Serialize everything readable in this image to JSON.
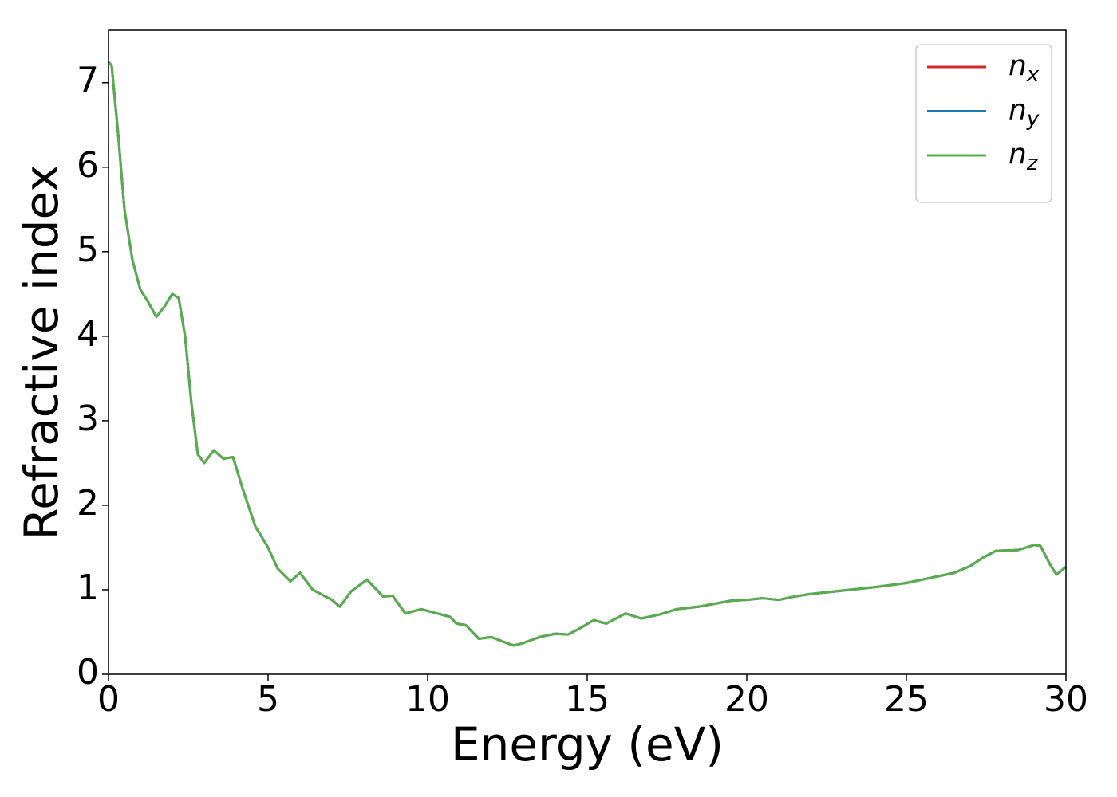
{
  "chart_data": {
    "type": "line",
    "x_label": "Energy (eV)",
    "y_label": "Refractive index",
    "x": [
      0,
      0.1,
      0.3,
      0.5,
      0.75,
      1.0,
      1.25,
      1.5,
      1.75,
      2.0,
      2.2,
      2.4,
      2.6,
      2.8,
      3.0,
      3.3,
      3.6,
      3.9,
      4.2,
      4.6,
      5.0,
      5.3,
      5.7,
      6.0,
      6.4,
      7.0,
      7.25,
      7.6,
      8.1,
      8.6,
      8.9,
      9.3,
      9.8,
      10.3,
      10.7,
      10.9,
      11.2,
      11.6,
      12.0,
      12.4,
      12.7,
      13.0,
      13.5,
      14.0,
      14.4,
      14.8,
      15.2,
      15.6,
      16.2,
      16.7,
      17.3,
      17.8,
      18.5,
      19.5,
      20.0,
      20.5,
      21.0,
      21.5,
      22.0,
      23.0,
      24.0,
      25.0,
      26.0,
      26.5,
      27.0,
      27.4,
      27.8,
      28.5,
      29.0,
      29.2,
      29.5,
      29.7,
      30.0
    ],
    "series": [
      {
        "name": "nx",
        "color": "#d62728",
        "values": [
          7.25,
          7.2,
          6.4,
          5.5,
          4.9,
          4.55,
          4.4,
          4.23,
          4.35,
          4.5,
          4.45,
          4.0,
          3.2,
          2.6,
          2.5,
          2.65,
          2.55,
          2.57,
          2.2,
          1.75,
          1.5,
          1.25,
          1.1,
          1.2,
          1.0,
          0.88,
          0.8,
          0.98,
          1.12,
          0.92,
          0.93,
          0.72,
          0.77,
          0.72,
          0.68,
          0.6,
          0.58,
          0.42,
          0.44,
          0.38,
          0.34,
          0.37,
          0.44,
          0.48,
          0.47,
          0.55,
          0.64,
          0.6,
          0.72,
          0.66,
          0.71,
          0.77,
          0.8,
          0.87,
          0.88,
          0.9,
          0.88,
          0.92,
          0.95,
          0.99,
          1.03,
          1.08,
          1.16,
          1.2,
          1.28,
          1.38,
          1.46,
          1.47,
          1.53,
          1.52,
          1.3,
          1.18,
          1.27
        ]
      },
      {
        "name": "ny",
        "color": "#1f77b4",
        "values": [
          7.25,
          7.2,
          6.4,
          5.5,
          4.9,
          4.55,
          4.4,
          4.23,
          4.35,
          4.5,
          4.45,
          4.0,
          3.2,
          2.6,
          2.5,
          2.65,
          2.55,
          2.57,
          2.2,
          1.75,
          1.5,
          1.25,
          1.1,
          1.2,
          1.0,
          0.88,
          0.8,
          0.98,
          1.12,
          0.92,
          0.93,
          0.72,
          0.77,
          0.72,
          0.68,
          0.6,
          0.58,
          0.42,
          0.44,
          0.38,
          0.34,
          0.37,
          0.44,
          0.48,
          0.47,
          0.55,
          0.64,
          0.6,
          0.72,
          0.66,
          0.71,
          0.77,
          0.8,
          0.87,
          0.88,
          0.9,
          0.88,
          0.92,
          0.95,
          0.99,
          1.03,
          1.08,
          1.16,
          1.2,
          1.28,
          1.38,
          1.46,
          1.47,
          1.53,
          1.52,
          1.3,
          1.18,
          1.27
        ]
      },
      {
        "name": "nz",
        "color": "#5aad4e",
        "values": [
          7.25,
          7.2,
          6.4,
          5.5,
          4.9,
          4.55,
          4.4,
          4.23,
          4.35,
          4.5,
          4.45,
          4.0,
          3.2,
          2.6,
          2.5,
          2.65,
          2.55,
          2.57,
          2.2,
          1.75,
          1.5,
          1.25,
          1.1,
          1.2,
          1.0,
          0.88,
          0.8,
          0.98,
          1.12,
          0.92,
          0.93,
          0.72,
          0.77,
          0.72,
          0.68,
          0.6,
          0.58,
          0.42,
          0.44,
          0.38,
          0.34,
          0.37,
          0.44,
          0.48,
          0.47,
          0.55,
          0.64,
          0.6,
          0.72,
          0.66,
          0.71,
          0.77,
          0.8,
          0.87,
          0.88,
          0.9,
          0.88,
          0.92,
          0.95,
          0.99,
          1.03,
          1.08,
          1.16,
          1.2,
          1.28,
          1.38,
          1.46,
          1.47,
          1.53,
          1.52,
          1.3,
          1.18,
          1.27
        ]
      }
    ],
    "xlim": [
      0,
      30
    ],
    "xticks": [
      0,
      5,
      10,
      15,
      20,
      25,
      30
    ],
    "ylim": [
      0,
      7.62
    ],
    "yticks": [
      0,
      1,
      2,
      3,
      4,
      5,
      6,
      7
    ],
    "grid": false,
    "legend": "upper right"
  }
}
